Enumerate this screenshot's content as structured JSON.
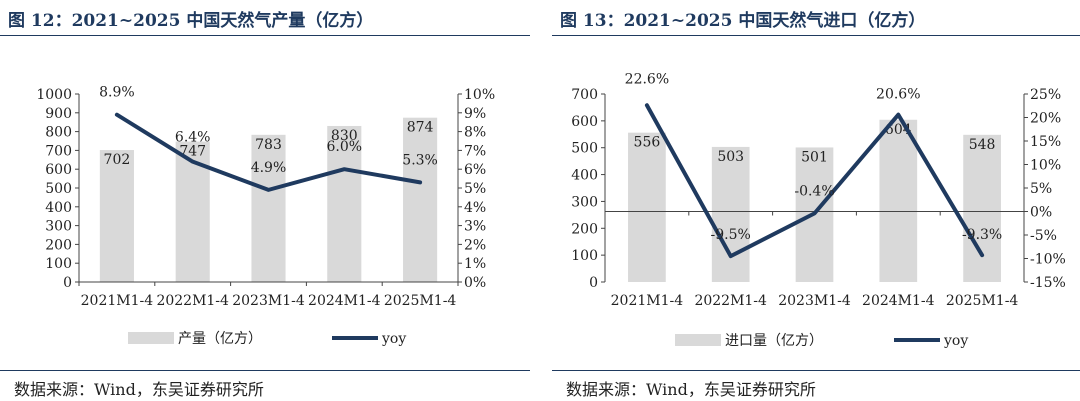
{
  "charts": [
    {
      "title": "图 12：2021~2025 中国天然气产量（亿方）",
      "source": "数据来源：Wind，东吴证券研究所",
      "chart_data": {
        "type": "bar",
        "categories": [
          "2021M1-4",
          "2022M1-4",
          "2023M1-4",
          "2024M1-4",
          "2025M1-4"
        ],
        "series": [
          {
            "name": "产量（亿方）",
            "type": "bar",
            "axis": "left",
            "values": [
              702,
              747,
              783,
              830,
              874
            ],
            "labels": [
              "702",
              "747",
              "783",
              "830",
              "874"
            ]
          },
          {
            "name": "yoy",
            "type": "line",
            "axis": "right",
            "values": [
              8.9,
              6.4,
              4.9,
              6.0,
              5.3
            ],
            "labels": [
              "8.9%",
              "6.4%",
              "4.9%",
              "6.0%",
              "5.3%"
            ]
          }
        ],
        "ylim": [
          0,
          1000
        ],
        "yticks": [
          0,
          100,
          200,
          300,
          400,
          500,
          600,
          700,
          800,
          900,
          1000
        ],
        "ytick_labels": [
          "0",
          "100",
          "200",
          "300",
          "400",
          "500",
          "600",
          "700",
          "800",
          "900",
          "1000"
        ],
        "y2lim": [
          0,
          10
        ],
        "y2ticks": [
          0,
          1,
          2,
          3,
          4,
          5,
          6,
          7,
          8,
          9,
          10
        ],
        "y2tick_labels": [
          "0%",
          "1%",
          "2%",
          "3%",
          "4%",
          "5%",
          "6%",
          "7%",
          "8%",
          "9%",
          "10%"
        ],
        "legend": "bottom",
        "grid": false,
        "colors": {
          "bar": "#d9d9d9",
          "line": "#1f3a5f"
        }
      }
    },
    {
      "title": "图 13：2021~2025 中国天然气进口（亿方）",
      "source": "数据来源：Wind，东吴证券研究所",
      "chart_data": {
        "type": "bar",
        "categories": [
          "2021M1-4",
          "2022M1-4",
          "2023M1-4",
          "2024M1-4",
          "2025M1-4"
        ],
        "series": [
          {
            "name": "进口量（亿方）",
            "type": "bar",
            "axis": "left",
            "values": [
              556,
              503,
              501,
              604,
              548
            ],
            "labels": [
              "556",
              "503",
              "501",
              "604",
              "548"
            ]
          },
          {
            "name": "yoy",
            "type": "line",
            "axis": "right",
            "values": [
              22.6,
              -9.5,
              -0.4,
              20.6,
              -9.3
            ],
            "labels": [
              "22.6%",
              "-9.5%",
              "-0.4%",
              "20.6%",
              "-9.3%"
            ]
          }
        ],
        "ylim": [
          0,
          700
        ],
        "yticks": [
          0,
          100,
          200,
          300,
          400,
          500,
          600,
          700
        ],
        "ytick_labels": [
          "0",
          "100",
          "200",
          "300",
          "400",
          "500",
          "600",
          "700"
        ],
        "y2lim": [
          -15,
          25
        ],
        "y2ticks": [
          -15,
          -10,
          -5,
          0,
          5,
          10,
          15,
          20,
          25
        ],
        "y2tick_labels": [
          "-15%",
          "-10%",
          "-5%",
          "0%",
          "5%",
          "10%",
          "15%",
          "20%",
          "25%"
        ],
        "legend": "bottom",
        "grid": false,
        "colors": {
          "bar": "#d9d9d9",
          "line": "#1f3a5f"
        }
      }
    }
  ]
}
